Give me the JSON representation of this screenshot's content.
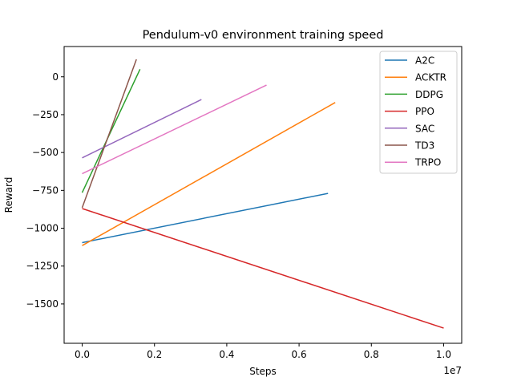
{
  "chart_data": {
    "type": "line",
    "title": "Pendulum-v0 environment training speed",
    "xlabel": "Steps",
    "ylabel": "Reward",
    "x_offset_label": "1e7",
    "xlim": [
      -0.05,
      1.05
    ],
    "ylim": [
      -1760,
      200
    ],
    "x_scale_factor": 10000000,
    "xticks": [
      0.0,
      0.2,
      0.4,
      0.6,
      0.8,
      1.0
    ],
    "xtick_labels": [
      "0.0",
      "0.2",
      "0.4",
      "0.6",
      "0.8",
      "1.0"
    ],
    "yticks": [
      0,
      -250,
      -500,
      -750,
      -1000,
      -1250,
      -1500
    ],
    "ytick_labels": [
      "0",
      "−250",
      "−500",
      "−750",
      "−1000",
      "−1250",
      "−1500"
    ],
    "grid": false,
    "legend_position": "top-right",
    "series": [
      {
        "name": "A2C",
        "color": "#1f77b4",
        "x": [
          0.0,
          0.68
        ],
        "y": [
          -1095,
          -770
        ]
      },
      {
        "name": "ACKTR",
        "color": "#ff7f0e",
        "x": [
          0.0,
          0.7
        ],
        "y": [
          -1115,
          -170
        ]
      },
      {
        "name": "DDPG",
        "color": "#2ca02c",
        "x": [
          0.0,
          0.16
        ],
        "y": [
          -765,
          50
        ]
      },
      {
        "name": "PPO",
        "color": "#d62728",
        "x": [
          0.0,
          1.0
        ],
        "y": [
          -870,
          -1660
        ]
      },
      {
        "name": "SAC",
        "color": "#9467bd",
        "x": [
          0.0,
          0.33
        ],
        "y": [
          -535,
          -150
        ]
      },
      {
        "name": "TD3",
        "color": "#8c564b",
        "x": [
          0.0,
          0.15
        ],
        "y": [
          -865,
          115
        ]
      },
      {
        "name": "TRPO",
        "color": "#e377c2",
        "x": [
          0.0,
          0.51
        ],
        "y": [
          -640,
          -55
        ]
      }
    ]
  }
}
